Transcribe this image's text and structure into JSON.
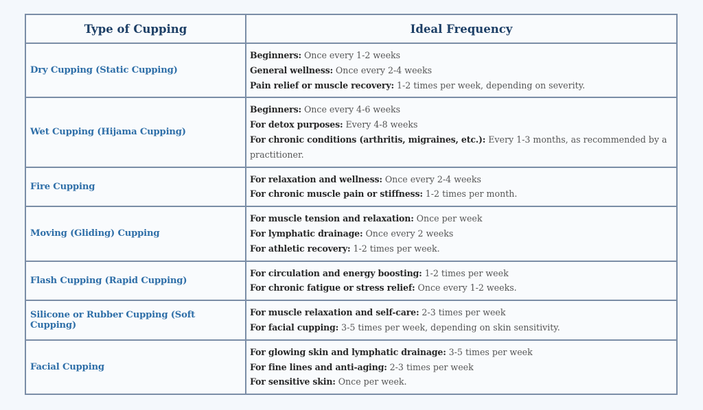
{
  "table": {
    "headers": {
      "type": "Type of Cupping",
      "frequency": "Ideal Frequency"
    },
    "colors": {
      "header_text": "#1d3f66",
      "type_text": "#2f6fa8",
      "border": "#7a8da6",
      "background": "#f9fbfd"
    },
    "rows": [
      {
        "type": "Dry Cupping (Static Cupping)",
        "items": [
          {
            "label": "Beginners:",
            "value": " Once every 1-2 weeks"
          },
          {
            "label": "General wellness:",
            "value": " Once every 2-4 weeks"
          },
          {
            "label": "Pain relief or muscle recovery:",
            "value": " 1-2 times per week, depending on severity."
          }
        ]
      },
      {
        "type": "Wet Cupping (Hijama Cupping)",
        "items": [
          {
            "label": "Beginners:",
            "value": " Once every 4-6 weeks"
          },
          {
            "label": "For detox purposes:",
            "value": " Every 4-8 weeks"
          },
          {
            "label": "For chronic conditions (arthritis, migraines, etc.):",
            "value": " Every 1-3 months, as recommended by a practitioner."
          }
        ]
      },
      {
        "type": "Fire Cupping",
        "items": [
          {
            "label": "For relaxation and wellness:",
            "value": " Once every 2-4 weeks"
          },
          {
            "label": "For chronic muscle pain or stiffness:",
            "value": " 1-2 times per month."
          }
        ]
      },
      {
        "type": "Moving (Gliding) Cupping",
        "items": [
          {
            "label": "For muscle tension and relaxation:",
            "value": " Once per week"
          },
          {
            "label": "For lymphatic drainage:",
            "value": " Once every 2 weeks"
          },
          {
            "label": "For athletic recovery:",
            "value": " 1-2 times per week."
          }
        ]
      },
      {
        "type": "Flash Cupping (Rapid Cupping)",
        "items": [
          {
            "label": "For circulation and energy boosting:",
            "value": " 1-2 times per week"
          },
          {
            "label": "For chronic fatigue or stress relief:",
            "value": " Once every 1-2 weeks."
          }
        ]
      },
      {
        "type": "Silicone or Rubber Cupping (Soft Cupping)",
        "items": [
          {
            "label": "For muscle relaxation and self-care:",
            "value": " 2-3 times per week"
          },
          {
            "label": "For facial cupping:",
            "value": " 3-5 times per week, depending on skin sensitivity."
          }
        ]
      },
      {
        "type": "Facial Cupping",
        "items": [
          {
            "label": "For glowing skin and lymphatic drainage:",
            "value": " 3-5 times per week"
          },
          {
            "label": "For fine lines and anti-aging:",
            "value": " 2-3 times per week"
          },
          {
            "label": "For sensitive skin:",
            "value": " Once per week."
          }
        ]
      }
    ]
  }
}
